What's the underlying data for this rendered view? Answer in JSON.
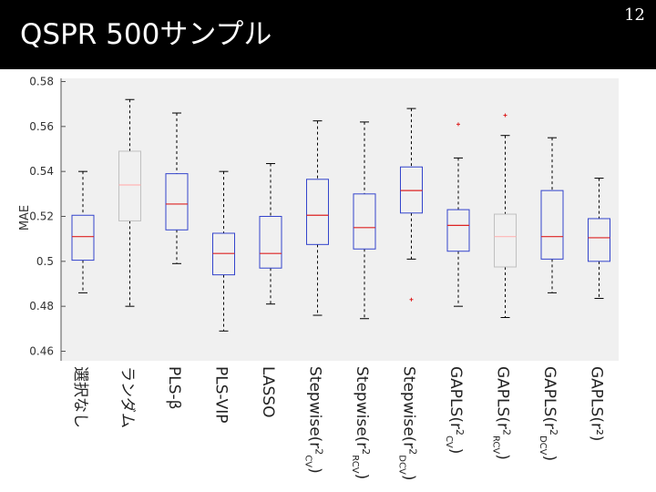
{
  "slide": {
    "title": "QSPR 500サンプル",
    "page_number": "12"
  },
  "chart_data": {
    "type": "box",
    "title": "",
    "xlabel": "",
    "ylabel": "MAE",
    "ylim": [
      0.46,
      0.58
    ],
    "yticks": [
      0.46,
      0.48,
      0.5,
      0.52,
      0.54,
      0.56,
      0.58
    ],
    "ytick_labels": [
      "0.46",
      "0.48",
      "0.5",
      "0.52",
      "0.54",
      "0.56",
      "0.58"
    ],
    "grid": false,
    "colors": {
      "box": "#3344cc",
      "median": "#dd2222",
      "whisker": "#000000",
      "outlier": "#dd2222",
      "faded_box": "#c0c0c0",
      "faded_median": "#ffb5b5"
    },
    "categories": [
      {
        "label": "選択なし",
        "base": "選択なし",
        "sup": "",
        "sub": ""
      },
      {
        "label": "ランダム",
        "base": "ランダム",
        "sup": "",
        "sub": ""
      },
      {
        "label": "PLS-β",
        "base": "PLS-β",
        "sup": "",
        "sub": ""
      },
      {
        "label": "PLS-VIP",
        "base": "PLS-VIP",
        "sup": "",
        "sub": ""
      },
      {
        "label": "LASSO",
        "base": "LASSO",
        "sup": "",
        "sub": ""
      },
      {
        "label": "Stepwise(r2CV)",
        "base": "Stepwise(r",
        "sup": "2",
        "sub": "CV"
      },
      {
        "label": "Stepwise(r2RCV)",
        "base": "Stepwise(r",
        "sup": "2",
        "sub": "RCV"
      },
      {
        "label": "Stepwise(r2DCV)",
        "base": "Stepwise(r",
        "sup": "2",
        "sub": "DCV"
      },
      {
        "label": "GAPLS(r2CV)",
        "base": "GAPLS(r",
        "sup": "2",
        "sub": "CV"
      },
      {
        "label": "GAPLS(r2RCV)",
        "base": "GAPLS(r",
        "sup": "2",
        "sub": "RCV"
      },
      {
        "label": "GAPLS(r2DCV)",
        "base": "GAPLS(r",
        "sup": "2",
        "sub": "DCV"
      },
      {
        "label": "GAPLS(r²)",
        "base": "GAPLS(r²)",
        "sup": "",
        "sub": ""
      }
    ],
    "boxes": [
      {
        "whisker_low": 0.486,
        "q1": 0.5005,
        "median": 0.511,
        "q3": 0.5205,
        "whisker_high": 0.54,
        "outliers": [],
        "faded": false
      },
      {
        "whisker_low": 0.48,
        "q1": 0.518,
        "median": 0.534,
        "q3": 0.549,
        "whisker_high": 0.572,
        "outliers": [],
        "faded": true
      },
      {
        "whisker_low": 0.499,
        "q1": 0.514,
        "median": 0.5255,
        "q3": 0.539,
        "whisker_high": 0.566,
        "outliers": [],
        "faded": false
      },
      {
        "whisker_low": 0.469,
        "q1": 0.494,
        "median": 0.5035,
        "q3": 0.5125,
        "whisker_high": 0.54,
        "outliers": [],
        "faded": false
      },
      {
        "whisker_low": 0.481,
        "q1": 0.497,
        "median": 0.5035,
        "q3": 0.52,
        "whisker_high": 0.5435,
        "outliers": [],
        "faded": false
      },
      {
        "whisker_low": 0.476,
        "q1": 0.5075,
        "median": 0.5205,
        "q3": 0.5365,
        "whisker_high": 0.5625,
        "outliers": [],
        "faded": false
      },
      {
        "whisker_low": 0.4745,
        "q1": 0.5055,
        "median": 0.515,
        "q3": 0.53,
        "whisker_high": 0.562,
        "outliers": [],
        "faded": false
      },
      {
        "whisker_low": 0.501,
        "q1": 0.5215,
        "median": 0.5315,
        "q3": 0.542,
        "whisker_high": 0.568,
        "outliers": [
          0.483
        ],
        "faded": false
      },
      {
        "whisker_low": 0.48,
        "q1": 0.5045,
        "median": 0.516,
        "q3": 0.523,
        "whisker_high": 0.546,
        "outliers": [
          0.561
        ],
        "faded": false
      },
      {
        "whisker_low": 0.475,
        "q1": 0.4975,
        "median": 0.511,
        "q3": 0.521,
        "whisker_high": 0.556,
        "outliers": [
          0.565
        ],
        "faded": true
      },
      {
        "whisker_low": 0.486,
        "q1": 0.501,
        "median": 0.511,
        "q3": 0.5315,
        "whisker_high": 0.555,
        "outliers": [],
        "faded": false
      },
      {
        "whisker_low": 0.4835,
        "q1": 0.5,
        "median": 0.5105,
        "q3": 0.519,
        "whisker_high": 0.537,
        "outliers": [],
        "faded": false
      }
    ]
  }
}
